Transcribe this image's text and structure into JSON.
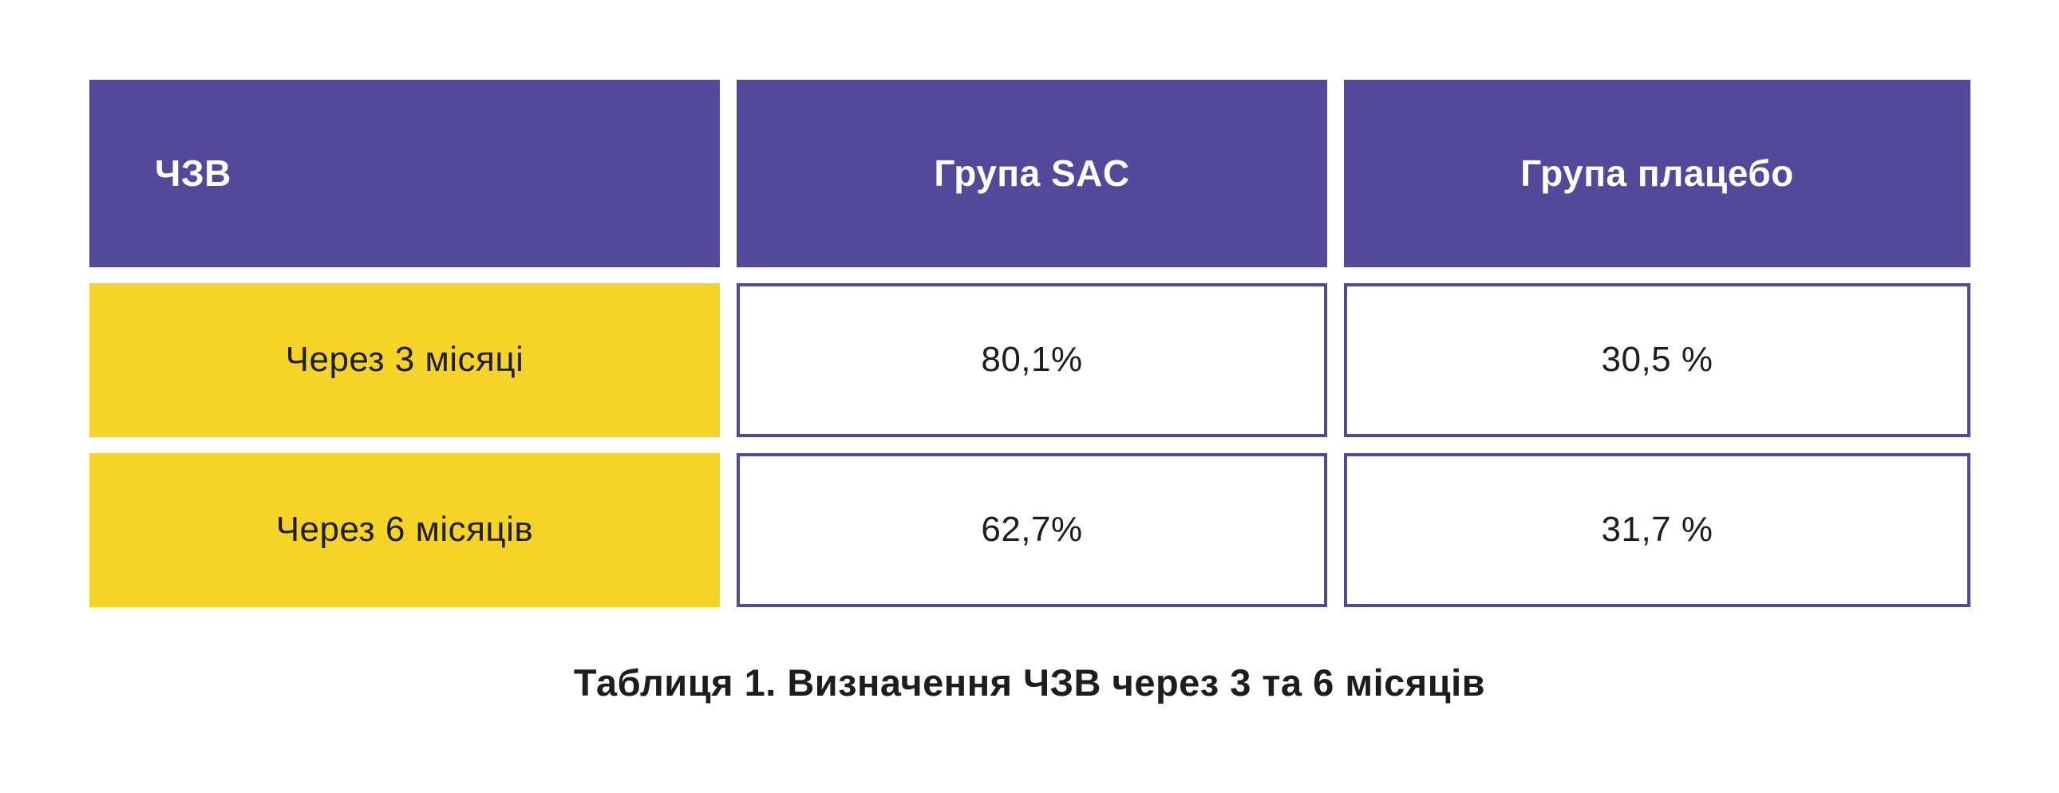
{
  "table": {
    "columns": [
      "ЧЗВ",
      "Група SAC",
      "Група плацебо"
    ],
    "rows": [
      {
        "cells": [
          "Через 3 місяці",
          "80,1%",
          "30,5 %"
        ]
      },
      {
        "cells": [
          "Через 6 місяців",
          "62,7%",
          "31,7 %"
        ]
      }
    ],
    "caption": "Таблиця 1. Визначення ЧЗВ через 3 та 6 місяців"
  },
  "chart_data": {
    "type": "table",
    "title": "Таблиця 1. Визначення ЧЗВ через 3 та 6 місяців",
    "columns": [
      "ЧЗВ",
      "Група SAC",
      "Група плацебо"
    ],
    "rows": [
      [
        "Через 3 місяці",
        "80,1%",
        "30,5 %"
      ],
      [
        "Через 6 місяців",
        "62,7%",
        "31,7 %"
      ]
    ],
    "series": [
      {
        "name": "Група SAC",
        "values": [
          80.1,
          62.7
        ]
      },
      {
        "name": "Група плацебо",
        "values": [
          30.5,
          31.7
        ]
      }
    ],
    "categories": [
      "Через 3 місяці",
      "Через 6 місяців"
    ]
  },
  "colors": {
    "page_bg": "#FFFFFF",
    "header_bg": "#54489B",
    "header_text": "#FFFFFF",
    "row_label_bg": "#F5D327",
    "cell_border": "#54489B",
    "body_text": "#1D1D1B"
  }
}
